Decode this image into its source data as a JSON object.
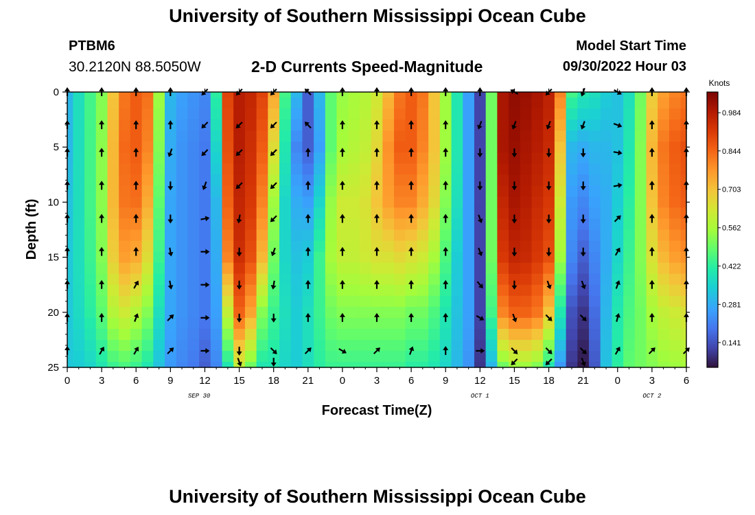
{
  "header": {
    "title": "University of Southern Mississippi Ocean Cube",
    "station_id": "PTBM6",
    "coordinates": "30.2120N  88.5050W",
    "subtitle": "2-D Currents Speed-Magnitude",
    "model_start_label": "Model Start Time",
    "model_start_value": "09/30/2022 Hour 03"
  },
  "footer": {
    "title": "University of Southern Mississippi Ocean Cube"
  },
  "chart_data": {
    "type": "heatmap",
    "title": "2-D Currents Speed-Magnitude",
    "xlabel": "Forecast Time(Z)",
    "ylabel": "Depth (ft)",
    "x_tick_labels": [
      "0",
      "3",
      "6",
      "9",
      "12",
      "15",
      "18",
      "21",
      "0",
      "3",
      "6",
      "9",
      "12",
      "15",
      "18",
      "21",
      "0",
      "3",
      "6"
    ],
    "x_tick_hours": [
      0,
      3,
      6,
      9,
      12,
      15,
      18,
      21,
      24,
      27,
      30,
      33,
      36,
      39,
      42,
      45,
      48,
      51,
      54
    ],
    "x_range_hours": [
      0,
      54
    ],
    "date_labels": [
      {
        "text": "SEP 30",
        "hour": 11.5
      },
      {
        "text": "OCT 1",
        "hour": 36
      },
      {
        "text": "OCT 2",
        "hour": 51
      }
    ],
    "y_ticks": [
      0,
      5,
      10,
      15,
      20,
      25
    ],
    "y_range": [
      0,
      25
    ],
    "y_inverted": true,
    "colorbar": {
      "label": "Knots",
      "ticks": [
        "0.984",
        "0.844",
        "0.703",
        "0.562",
        "0.422",
        "0.281",
        "0.141"
      ],
      "range": [
        0.05,
        1.06
      ]
    },
    "grid": {
      "time_hours": [
        0,
        1,
        2,
        3,
        4,
        5,
        6,
        7,
        8,
        9,
        10,
        11,
        12,
        13,
        14,
        15,
        16,
        17,
        18,
        19,
        20,
        21,
        22,
        23,
        24,
        25,
        26,
        27,
        28,
        29,
        30,
        31,
        32,
        33,
        34,
        35,
        36,
        37,
        38,
        39,
        40,
        41,
        42,
        43,
        44,
        45,
        46,
        47,
        48,
        49,
        50,
        51,
        52,
        53,
        54
      ],
      "depth_ft": [
        0,
        1,
        2,
        3,
        4,
        5,
        6,
        7,
        8,
        9,
        10,
        11,
        12,
        13,
        14,
        15,
        16,
        17,
        18,
        19,
        20,
        21,
        22,
        23,
        24,
        25
      ],
      "profiles": [
        {
          "hour": 0,
          "values": [
            0.3,
            0.3,
            0.32,
            0.33,
            0.33,
            0.33
          ]
        },
        {
          "hour": 1,
          "values": [
            0.38,
            0.38,
            0.38,
            0.38,
            0.37,
            0.34
          ]
        },
        {
          "hour": 2,
          "values": [
            0.45,
            0.45,
            0.45,
            0.44,
            0.42,
            0.36
          ]
        },
        {
          "hour": 3,
          "values": [
            0.52,
            0.53,
            0.53,
            0.52,
            0.48,
            0.4
          ]
        },
        {
          "hour": 4,
          "values": [
            0.7,
            0.72,
            0.72,
            0.68,
            0.58,
            0.44
          ]
        },
        {
          "hour": 5,
          "values": [
            0.82,
            0.84,
            0.82,
            0.76,
            0.62,
            0.46
          ]
        },
        {
          "hour": 6,
          "values": [
            0.86,
            0.86,
            0.83,
            0.74,
            0.58,
            0.44
          ]
        },
        {
          "hour": 7,
          "values": [
            0.83,
            0.8,
            0.74,
            0.65,
            0.52,
            0.4
          ]
        },
        {
          "hour": 8,
          "values": [
            0.55,
            0.52,
            0.48,
            0.44,
            0.38,
            0.32
          ]
        },
        {
          "hour": 9,
          "values": [
            0.3,
            0.28,
            0.27,
            0.27,
            0.27,
            0.25
          ]
        },
        {
          "hour": 10,
          "values": [
            0.26,
            0.24,
            0.24,
            0.24,
            0.24,
            0.22
          ]
        },
        {
          "hour": 11,
          "values": [
            0.24,
            0.22,
            0.22,
            0.22,
            0.22,
            0.2
          ]
        },
        {
          "hour": 12,
          "values": [
            0.22,
            0.2,
            0.2,
            0.2,
            0.2,
            0.16
          ]
        },
        {
          "hour": 13,
          "values": [
            0.42,
            0.36,
            0.3,
            0.28,
            0.26,
            0.22
          ]
        },
        {
          "hour": 14,
          "values": [
            0.9,
            0.88,
            0.85,
            0.8,
            0.6,
            0.4
          ]
        },
        {
          "hour": 15,
          "values": [
            0.98,
            0.98,
            0.96,
            0.94,
            0.85,
            0.6
          ]
        },
        {
          "hour": 16,
          "values": [
            0.96,
            0.94,
            0.92,
            0.88,
            0.75,
            0.5
          ]
        },
        {
          "hour": 17,
          "values": [
            0.9,
            0.86,
            0.8,
            0.72,
            0.52,
            0.4
          ]
        },
        {
          "hour": 18,
          "values": [
            0.75,
            0.65,
            0.55,
            0.5,
            0.44,
            0.4
          ]
        },
        {
          "hour": 19,
          "values": [
            0.45,
            0.4,
            0.36,
            0.36,
            0.38,
            0.36
          ]
        },
        {
          "hour": 20,
          "values": [
            0.3,
            0.22,
            0.28,
            0.32,
            0.34,
            0.34
          ]
        },
        {
          "hour": 21,
          "values": [
            0.16,
            0.16,
            0.26,
            0.34,
            0.38,
            0.38
          ]
        },
        {
          "hour": 22,
          "values": [
            0.3,
            0.26,
            0.36,
            0.44,
            0.44,
            0.42
          ]
        },
        {
          "hour": 23,
          "values": [
            0.48,
            0.48,
            0.54,
            0.56,
            0.5,
            0.44
          ]
        },
        {
          "hour": 24,
          "values": [
            0.54,
            0.56,
            0.62,
            0.6,
            0.52,
            0.44
          ]
        },
        {
          "hour": 25,
          "values": [
            0.56,
            0.58,
            0.62,
            0.6,
            0.52,
            0.44
          ]
        },
        {
          "hour": 26,
          "values": [
            0.58,
            0.6,
            0.64,
            0.62,
            0.52,
            0.44
          ]
        },
        {
          "hour": 27,
          "values": [
            0.62,
            0.66,
            0.7,
            0.64,
            0.52,
            0.44
          ]
        },
        {
          "hour": 28,
          "values": [
            0.72,
            0.78,
            0.76,
            0.64,
            0.52,
            0.44
          ]
        },
        {
          "hour": 29,
          "values": [
            0.82,
            0.86,
            0.8,
            0.66,
            0.52,
            0.44
          ]
        },
        {
          "hour": 30,
          "values": [
            0.86,
            0.86,
            0.8,
            0.64,
            0.5,
            0.42
          ]
        },
        {
          "hour": 31,
          "values": [
            0.82,
            0.8,
            0.74,
            0.62,
            0.5,
            0.42
          ]
        },
        {
          "hour": 32,
          "values": [
            0.7,
            0.7,
            0.66,
            0.56,
            0.46,
            0.4
          ]
        },
        {
          "hour": 33,
          "values": [
            0.55,
            0.55,
            0.52,
            0.46,
            0.4,
            0.36
          ]
        },
        {
          "hour": 34,
          "values": [
            0.4,
            0.4,
            0.38,
            0.34,
            0.32,
            0.3
          ]
        },
        {
          "hour": 35,
          "values": [
            0.26,
            0.26,
            0.26,
            0.26,
            0.26,
            0.24
          ]
        },
        {
          "hour": 36,
          "values": [
            0.12,
            0.12,
            0.12,
            0.12,
            0.12,
            0.1
          ]
        },
        {
          "hour": 37,
          "values": [
            0.5,
            0.5,
            0.5,
            0.5,
            0.45,
            0.3
          ]
        },
        {
          "hour": 38,
          "values": [
            1.0,
            1.0,
            0.96,
            0.92,
            0.8,
            0.5
          ]
        },
        {
          "hour": 39,
          "values": [
            1.03,
            1.02,
            1.0,
            0.96,
            0.85,
            0.55
          ]
        },
        {
          "hour": 40,
          "values": [
            1.02,
            1.0,
            0.98,
            0.95,
            0.85,
            0.55
          ]
        },
        {
          "hour": 41,
          "values": [
            1.0,
            0.98,
            0.95,
            0.92,
            0.82,
            0.52
          ]
        },
        {
          "hour": 42,
          "values": [
            0.97,
            0.95,
            0.92,
            0.88,
            0.7,
            0.4
          ]
        },
        {
          "hour": 43,
          "values": [
            0.8,
            0.7,
            0.62,
            0.55,
            0.4,
            0.25
          ]
        },
        {
          "hour": 44,
          "values": [
            0.45,
            0.3,
            0.25,
            0.22,
            0.14,
            0.1
          ]
        },
        {
          "hour": 45,
          "values": [
            0.4,
            0.28,
            0.22,
            0.16,
            0.1,
            0.06
          ]
        },
        {
          "hour": 46,
          "values": [
            0.38,
            0.3,
            0.26,
            0.22,
            0.18,
            0.15
          ]
        },
        {
          "hour": 47,
          "values": [
            0.34,
            0.3,
            0.28,
            0.28,
            0.3,
            0.32
          ]
        },
        {
          "hour": 48,
          "values": [
            0.32,
            0.32,
            0.34,
            0.36,
            0.4,
            0.42
          ]
        },
        {
          "hour": 49,
          "values": [
            0.38,
            0.4,
            0.42,
            0.44,
            0.46,
            0.48
          ]
        },
        {
          "hour": 50,
          "values": [
            0.5,
            0.52,
            0.52,
            0.52,
            0.5,
            0.5
          ]
        },
        {
          "hour": 51,
          "values": [
            0.68,
            0.72,
            0.7,
            0.64,
            0.56,
            0.52
          ]
        },
        {
          "hour": 52,
          "values": [
            0.76,
            0.82,
            0.8,
            0.72,
            0.6,
            0.54
          ]
        },
        {
          "hour": 53,
          "values": [
            0.8,
            0.86,
            0.84,
            0.76,
            0.62,
            0.55
          ]
        },
        {
          "hour": 54,
          "values": [
            0.82,
            0.88,
            0.86,
            0.78,
            0.64,
            0.56
          ]
        }
      ],
      "profile_depths_ft": [
        0,
        5,
        10,
        15,
        20,
        25
      ]
    },
    "vectors": {
      "hours": [
        0,
        3,
        6,
        9,
        12,
        15,
        18,
        21,
        24,
        27,
        30,
        33,
        36,
        39,
        42,
        45,
        48,
        51,
        54
      ],
      "depths_ft": [
        0,
        3,
        5.5,
        8.5,
        11.5,
        14.5,
        17.5,
        20.5,
        23.5,
        24.5
      ],
      "angle_deg_rows": [
        [
          0,
          0,
          0,
          0,
          225,
          225,
          225,
          315,
          0,
          0,
          0,
          0,
          0,
          300,
          225,
          200,
          120,
          0,
          0
        ],
        [
          0,
          0,
          0,
          0,
          225,
          225,
          225,
          315,
          0,
          0,
          0,
          0,
          200,
          200,
          200,
          200,
          110,
          0,
          0
        ],
        [
          0,
          0,
          0,
          200,
          225,
          225,
          225,
          0,
          0,
          0,
          0,
          0,
          180,
          180,
          180,
          180,
          100,
          0,
          0
        ],
        [
          0,
          0,
          0,
          180,
          200,
          225,
          225,
          0,
          0,
          0,
          0,
          0,
          180,
          180,
          180,
          180,
          80,
          0,
          0
        ],
        [
          0,
          0,
          0,
          180,
          80,
          190,
          225,
          0,
          0,
          0,
          0,
          0,
          160,
          180,
          180,
          180,
          45,
          0,
          0
        ],
        [
          0,
          0,
          0,
          170,
          90,
          180,
          200,
          0,
          0,
          0,
          0,
          0,
          160,
          180,
          180,
          180,
          30,
          0,
          0
        ],
        [
          0,
          0,
          30,
          170,
          90,
          180,
          190,
          0,
          0,
          0,
          0,
          0,
          140,
          180,
          160,
          160,
          20,
          0,
          0
        ],
        [
          0,
          0,
          20,
          45,
          90,
          180,
          180,
          0,
          0,
          0,
          0,
          0,
          120,
          160,
          135,
          135,
          15,
          0,
          0
        ],
        [
          0,
          30,
          30,
          45,
          90,
          180,
          135,
          45,
          120,
          45,
          20,
          0,
          90,
          135,
          135,
          135,
          30,
          45,
          45
        ],
        [
          null,
          null,
          null,
          null,
          null,
          160,
          180,
          null,
          null,
          null,
          null,
          null,
          null,
          225,
          225,
          160,
          null,
          null,
          null
        ]
      ]
    }
  }
}
